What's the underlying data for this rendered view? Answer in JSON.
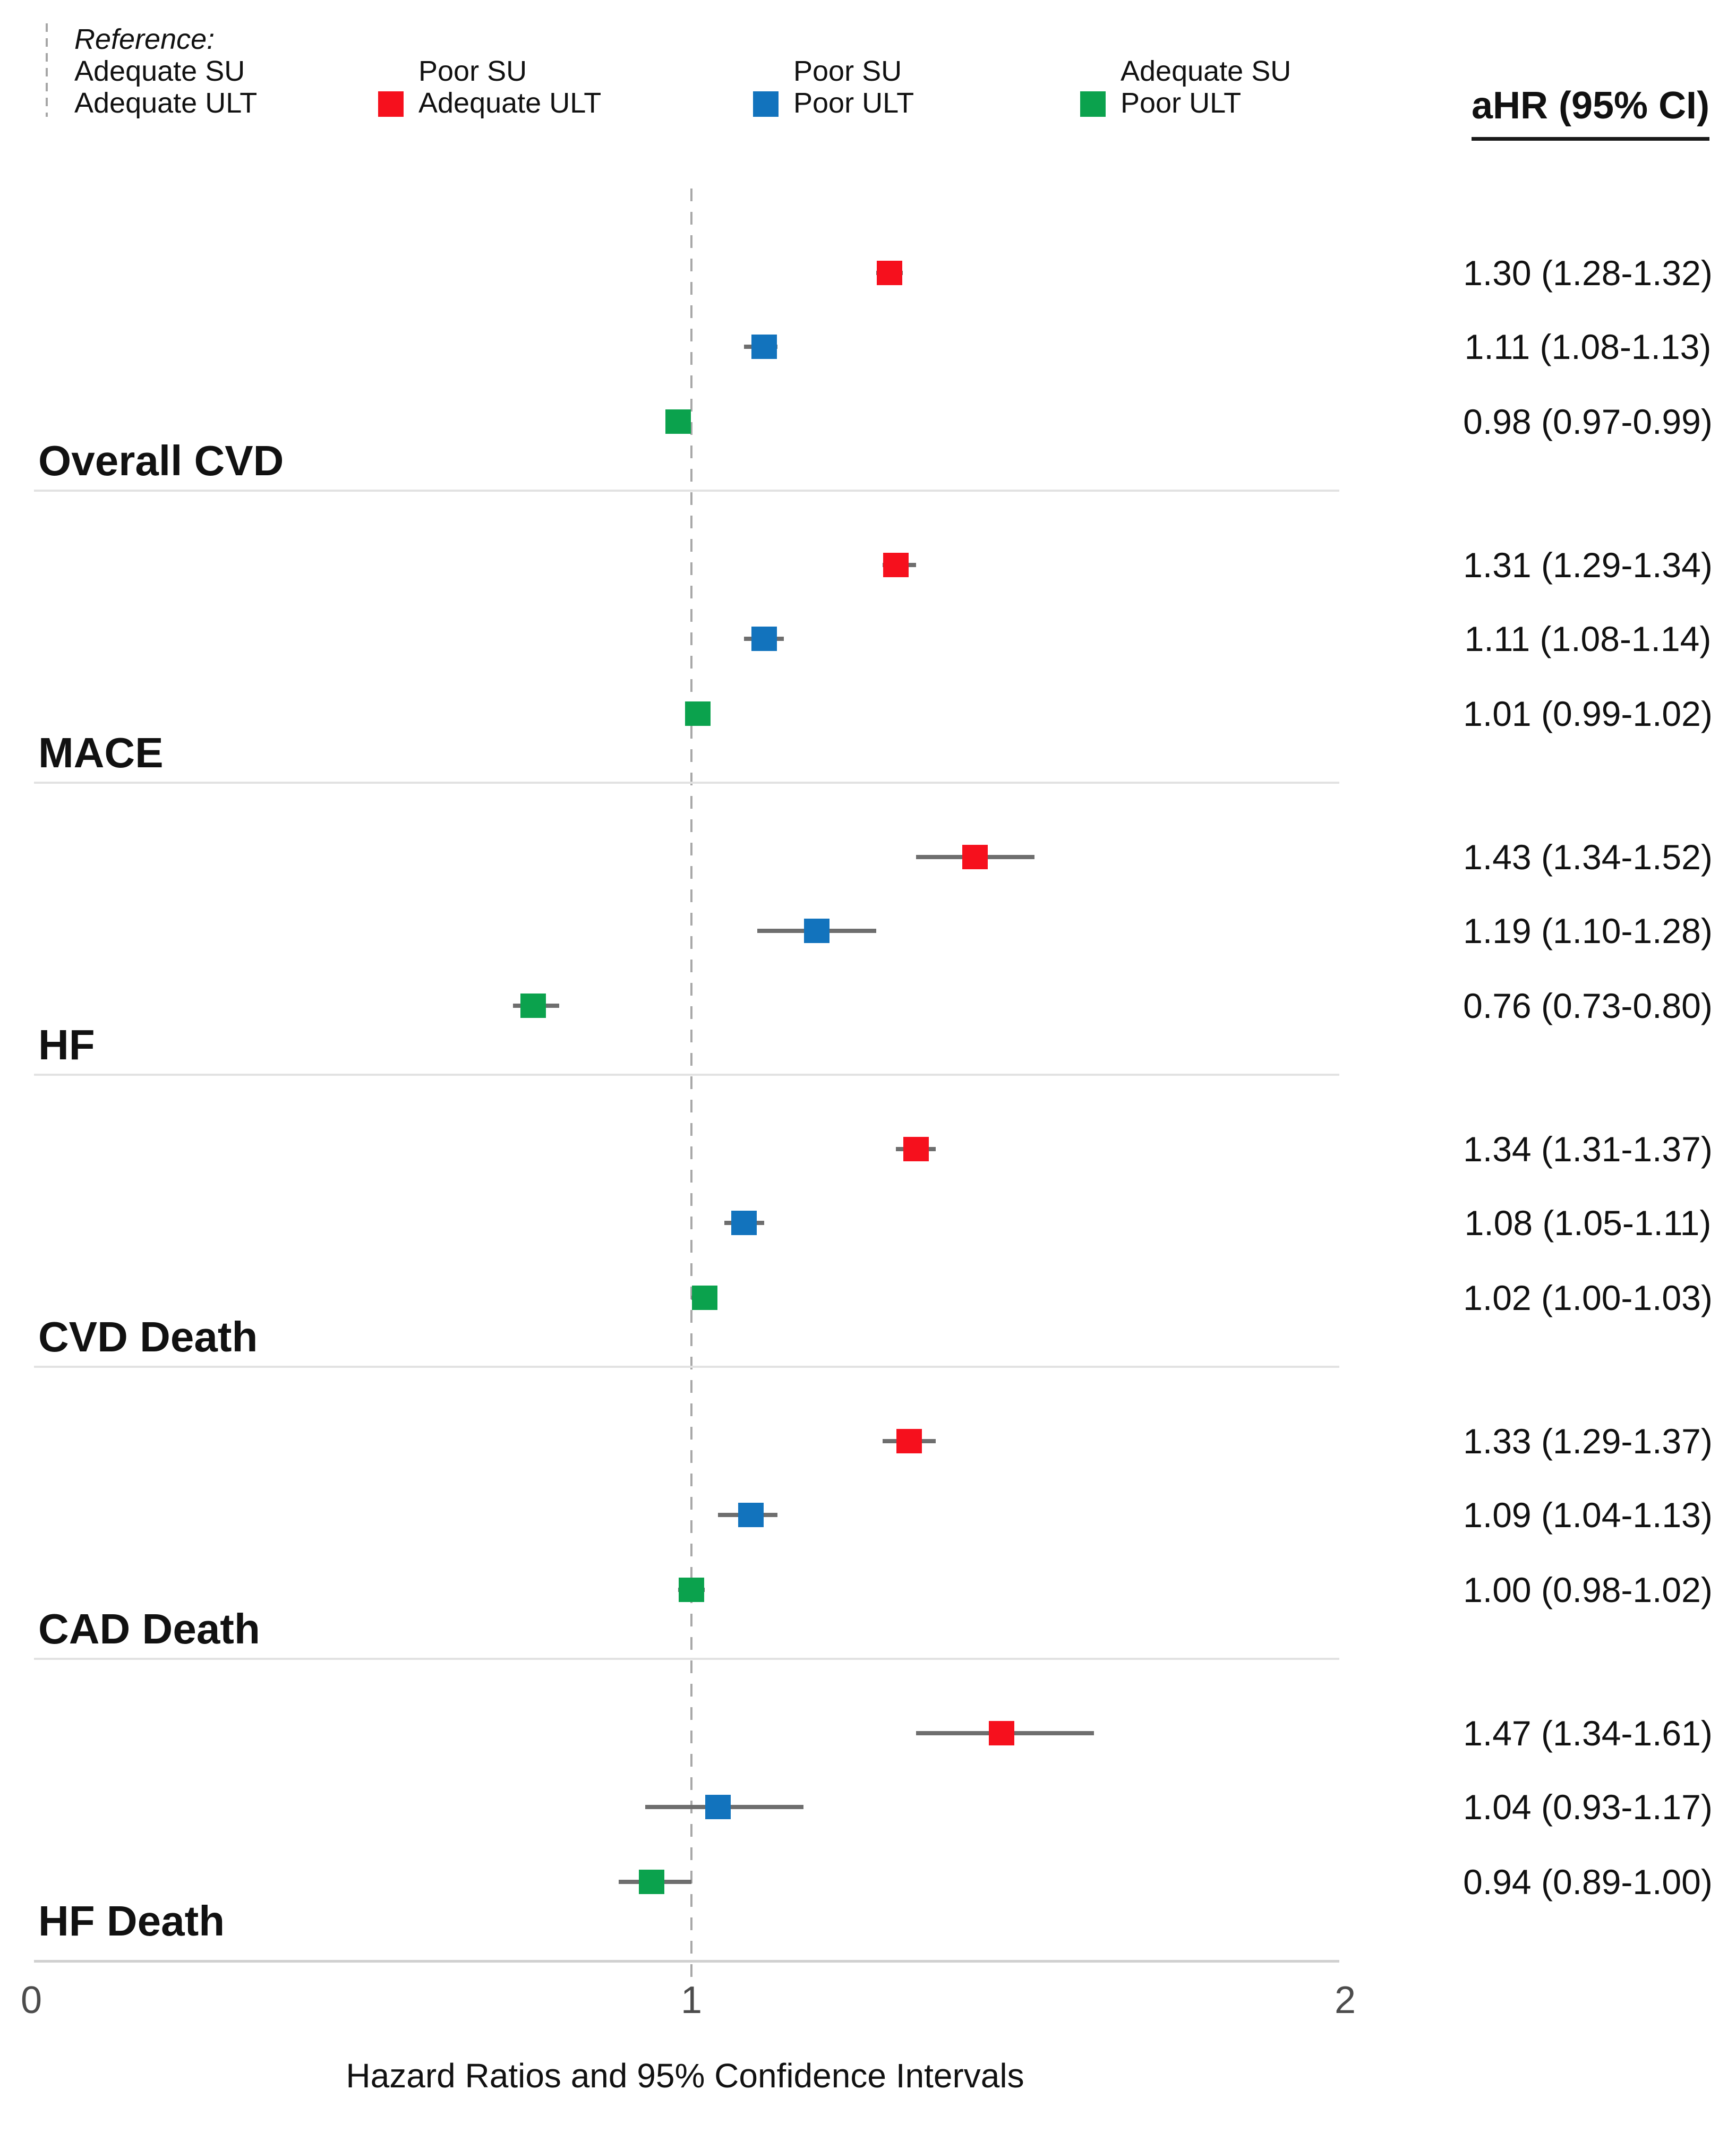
{
  "header": {
    "value_col": "aHR (95% CI)"
  },
  "legend": {
    "reference": {
      "title": "Reference:",
      "line1": "Adequate SU",
      "line2": "Adequate ULT"
    },
    "entries": [
      {
        "id": "poor-su-adequate-ult",
        "line1": "Poor SU",
        "line2": "Adequate ULT",
        "color": "#f6101d"
      },
      {
        "id": "poor-su-poor-ult",
        "line1": "Poor SU",
        "line2": "Poor ULT",
        "color": "#1273bd"
      },
      {
        "id": "adequate-su-poor-ult",
        "line1": "Adequate SU",
        "line2": "Poor ULT",
        "color": "#0ba24d"
      }
    ]
  },
  "chart_data": {
    "type": "forest",
    "xlabel": "Hazard Ratios and 95% Confidence Intervals",
    "x_axis": {
      "min": 0,
      "max": 2,
      "tick_labels": [
        "0",
        "1",
        "2"
      ],
      "reference_line": 1
    },
    "legend_position": "top",
    "grid": "group-separator-lines",
    "ci_color": "#6e6e6e",
    "series": [
      "Poor SU / Adequate ULT",
      "Poor SU / Poor ULT",
      "Adequate SU / Poor ULT"
    ],
    "colors": [
      "#f6101d",
      "#1273bd",
      "#0ba24d"
    ],
    "groups": [
      {
        "outcome": "Overall CVD",
        "estimates": [
          {
            "hr": 1.3,
            "lo": 1.28,
            "hi": 1.32,
            "label": "1.30 (1.28-1.32)"
          },
          {
            "hr": 1.11,
            "lo": 1.08,
            "hi": 1.13,
            "label": "1.11 (1.08-1.13)"
          },
          {
            "hr": 0.98,
            "lo": 0.97,
            "hi": 0.99,
            "label": "0.98 (0.97-0.99)"
          }
        ]
      },
      {
        "outcome": "MACE",
        "estimates": [
          {
            "hr": 1.31,
            "lo": 1.29,
            "hi": 1.34,
            "label": "1.31 (1.29-1.34)"
          },
          {
            "hr": 1.11,
            "lo": 1.08,
            "hi": 1.14,
            "label": "1.11 (1.08-1.14)"
          },
          {
            "hr": 1.01,
            "lo": 0.99,
            "hi": 1.02,
            "label": "1.01 (0.99-1.02)"
          }
        ]
      },
      {
        "outcome": "HF",
        "estimates": [
          {
            "hr": 1.43,
            "lo": 1.34,
            "hi": 1.52,
            "label": "1.43 (1.34-1.52)"
          },
          {
            "hr": 1.19,
            "lo": 1.1,
            "hi": 1.28,
            "label": "1.19 (1.10-1.28)"
          },
          {
            "hr": 0.76,
            "lo": 0.73,
            "hi": 0.8,
            "label": "0.76 (0.73-0.80)"
          }
        ]
      },
      {
        "outcome": "CVD Death",
        "estimates": [
          {
            "hr": 1.34,
            "lo": 1.31,
            "hi": 1.37,
            "label": "1.34 (1.31-1.37)"
          },
          {
            "hr": 1.08,
            "lo": 1.05,
            "hi": 1.11,
            "label": "1.08 (1.05-1.11)"
          },
          {
            "hr": 1.02,
            "lo": 1.0,
            "hi": 1.03,
            "label": "1.02 (1.00-1.03)"
          }
        ]
      },
      {
        "outcome": "CAD Death",
        "estimates": [
          {
            "hr": 1.33,
            "lo": 1.29,
            "hi": 1.37,
            "label": "1.33 (1.29-1.37)"
          },
          {
            "hr": 1.09,
            "lo": 1.04,
            "hi": 1.13,
            "label": "1.09 (1.04-1.13)"
          },
          {
            "hr": 1.0,
            "lo": 0.98,
            "hi": 1.02,
            "label": "1.00 (0.98-1.02)"
          }
        ]
      },
      {
        "outcome": "HF Death",
        "estimates": [
          {
            "hr": 1.47,
            "lo": 1.34,
            "hi": 1.61,
            "label": "1.47 (1.34-1.61)"
          },
          {
            "hr": 1.04,
            "lo": 0.93,
            "hi": 1.17,
            "label": "1.04 (0.93-1.17)"
          },
          {
            "hr": 0.94,
            "lo": 0.89,
            "hi": 1.0,
            "label": "0.94 (0.89-1.00)"
          }
        ]
      }
    ]
  }
}
